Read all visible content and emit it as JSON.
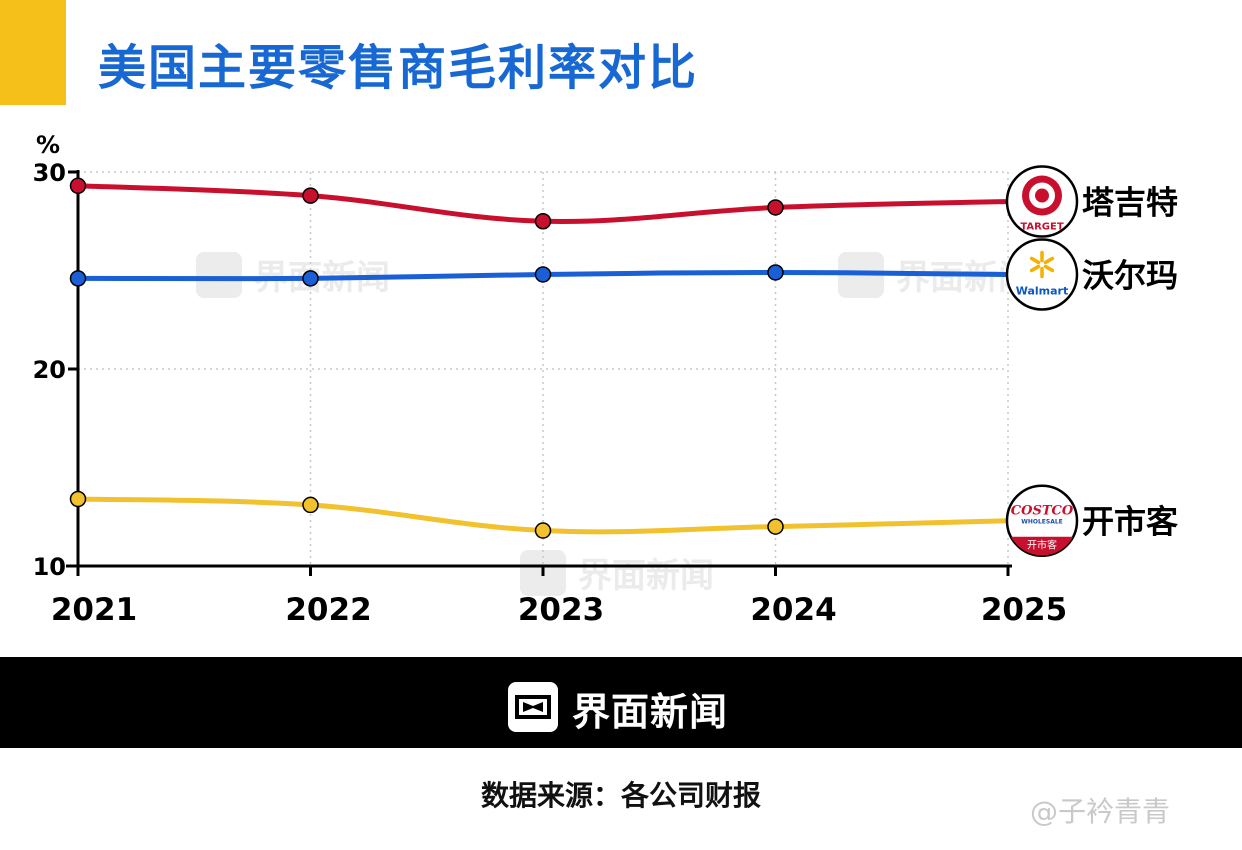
{
  "title": "美国主要零售商毛利率对比",
  "watermark_text": "界面新闻",
  "footer": {
    "brand": "界面新闻"
  },
  "source": "数据来源：各公司财报",
  "corner_watermark": "@子衿青青",
  "colors": {
    "title": "#1868d4",
    "accent": "#f5c01a",
    "target": "#c8102e",
    "walmart": "#1a5fd6",
    "costco": "#f2c12e"
  },
  "chart_data": {
    "type": "line",
    "ylabel": "%",
    "ylim": [
      10,
      30
    ],
    "yticks": [
      10,
      20,
      30
    ],
    "categories": [
      "2021",
      "2022",
      "2023",
      "2024",
      "2025"
    ],
    "grid": "dotted vertical and horizontal",
    "series": [
      {
        "name": "塔吉特",
        "key": "target",
        "color": "#c8102e",
        "values": [
          29.3,
          28.8,
          27.5,
          28.2,
          28.5
        ],
        "last_point_marker": false,
        "logo": "target-logo",
        "logo_text": "TARGET"
      },
      {
        "name": "沃尔玛",
        "key": "walmart",
        "color": "#1a5fd6",
        "values": [
          24.6,
          24.6,
          24.8,
          24.9,
          24.8
        ],
        "last_point_marker": false,
        "logo": "walmart-logo",
        "logo_text": "Walmart"
      },
      {
        "name": "开市客",
        "key": "costco",
        "color": "#f2c12e",
        "values": [
          13.4,
          13.1,
          11.8,
          12.0,
          12.3
        ],
        "last_point_marker": false,
        "logo": "costco-logo",
        "logo_text": "COSTCO",
        "logo_subtext": "WHOLESALE",
        "logo_cn": "开市客"
      }
    ]
  }
}
